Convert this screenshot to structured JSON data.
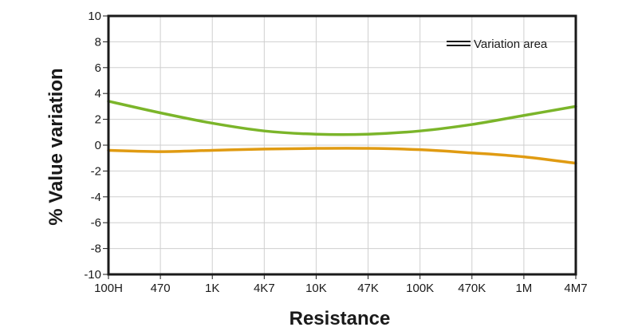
{
  "chart_data": {
    "type": "line",
    "title": "",
    "xlabel": "Resistance",
    "ylabel": "% Value variation",
    "categories": [
      "100H",
      "470",
      "1K",
      "4K7",
      "10K",
      "47K",
      "100K",
      "470K",
      "1M",
      "4M7"
    ],
    "ylim": [
      -10,
      10
    ],
    "yticks": [
      "10",
      "8",
      "6",
      "4",
      "2",
      "0",
      "-2",
      "-4",
      "-6",
      "-8",
      "-10"
    ],
    "grid": true,
    "legend": {
      "position": "top-right",
      "label": "Variation area"
    },
    "series": [
      {
        "color": "#7bb52a",
        "values": [
          3.4,
          2.5,
          1.7,
          1.1,
          0.85,
          0.85,
          1.1,
          1.6,
          2.3,
          3.0
        ]
      },
      {
        "color": "#e09b12",
        "values": [
          -0.4,
          -0.5,
          -0.4,
          -0.3,
          -0.25,
          -0.25,
          -0.35,
          -0.6,
          -0.9,
          -1.4
        ]
      }
    ]
  }
}
